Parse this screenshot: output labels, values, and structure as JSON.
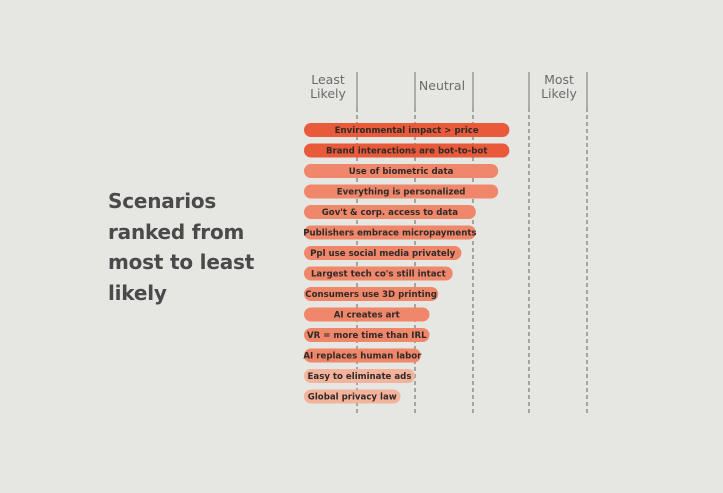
{
  "headline": {
    "lines": [
      "Scenarios",
      "ranked from",
      "most to least",
      "likely"
    ]
  },
  "chart_data": {
    "type": "bar",
    "orientation": "horizontal",
    "title": "Scenarios ranked from most to least likely",
    "scale_labels": [
      {
        "lines": [
          "Least",
          "Likely"
        ],
        "value": 1
      },
      {
        "lines": [
          "Neutral"
        ],
        "value": 3
      },
      {
        "lines": [
          "Most",
          "Likely"
        ],
        "value": 5
      }
    ],
    "xlim": [
      1,
      5
    ],
    "gridlines": [
      1,
      2,
      3,
      4,
      5
    ],
    "categories": [
      "Environmental impact > price",
      "Brand interactions are bot-to-bot",
      "Use of biometric data",
      "Everything is personalized",
      "Gov't & corp. access to data",
      "Publishers embrace micropayments",
      "Ppl use social media privately",
      "Largest tech co's still intact",
      "Consumers use 3D printing",
      "AI creates art",
      "VR = more time than IRL",
      "AI replaces human labor",
      "Easy to eliminate ads",
      "Global privacy law"
    ],
    "values": [
      3.65,
      3.65,
      3.45,
      3.45,
      3.05,
      3.05,
      2.8,
      2.65,
      2.4,
      2.25,
      2.25,
      2.1,
      2.0,
      1.75
    ],
    "colors": [
      "#e85a3a",
      "#e85a3a",
      "#f0876a",
      "#f0876a",
      "#f0876a",
      "#f0876a",
      "#f0876a",
      "#f0876a",
      "#f0876a",
      "#f0876a",
      "#f0876a",
      "#f0876a",
      "#f4b39c",
      "#f4b39c"
    ]
  }
}
